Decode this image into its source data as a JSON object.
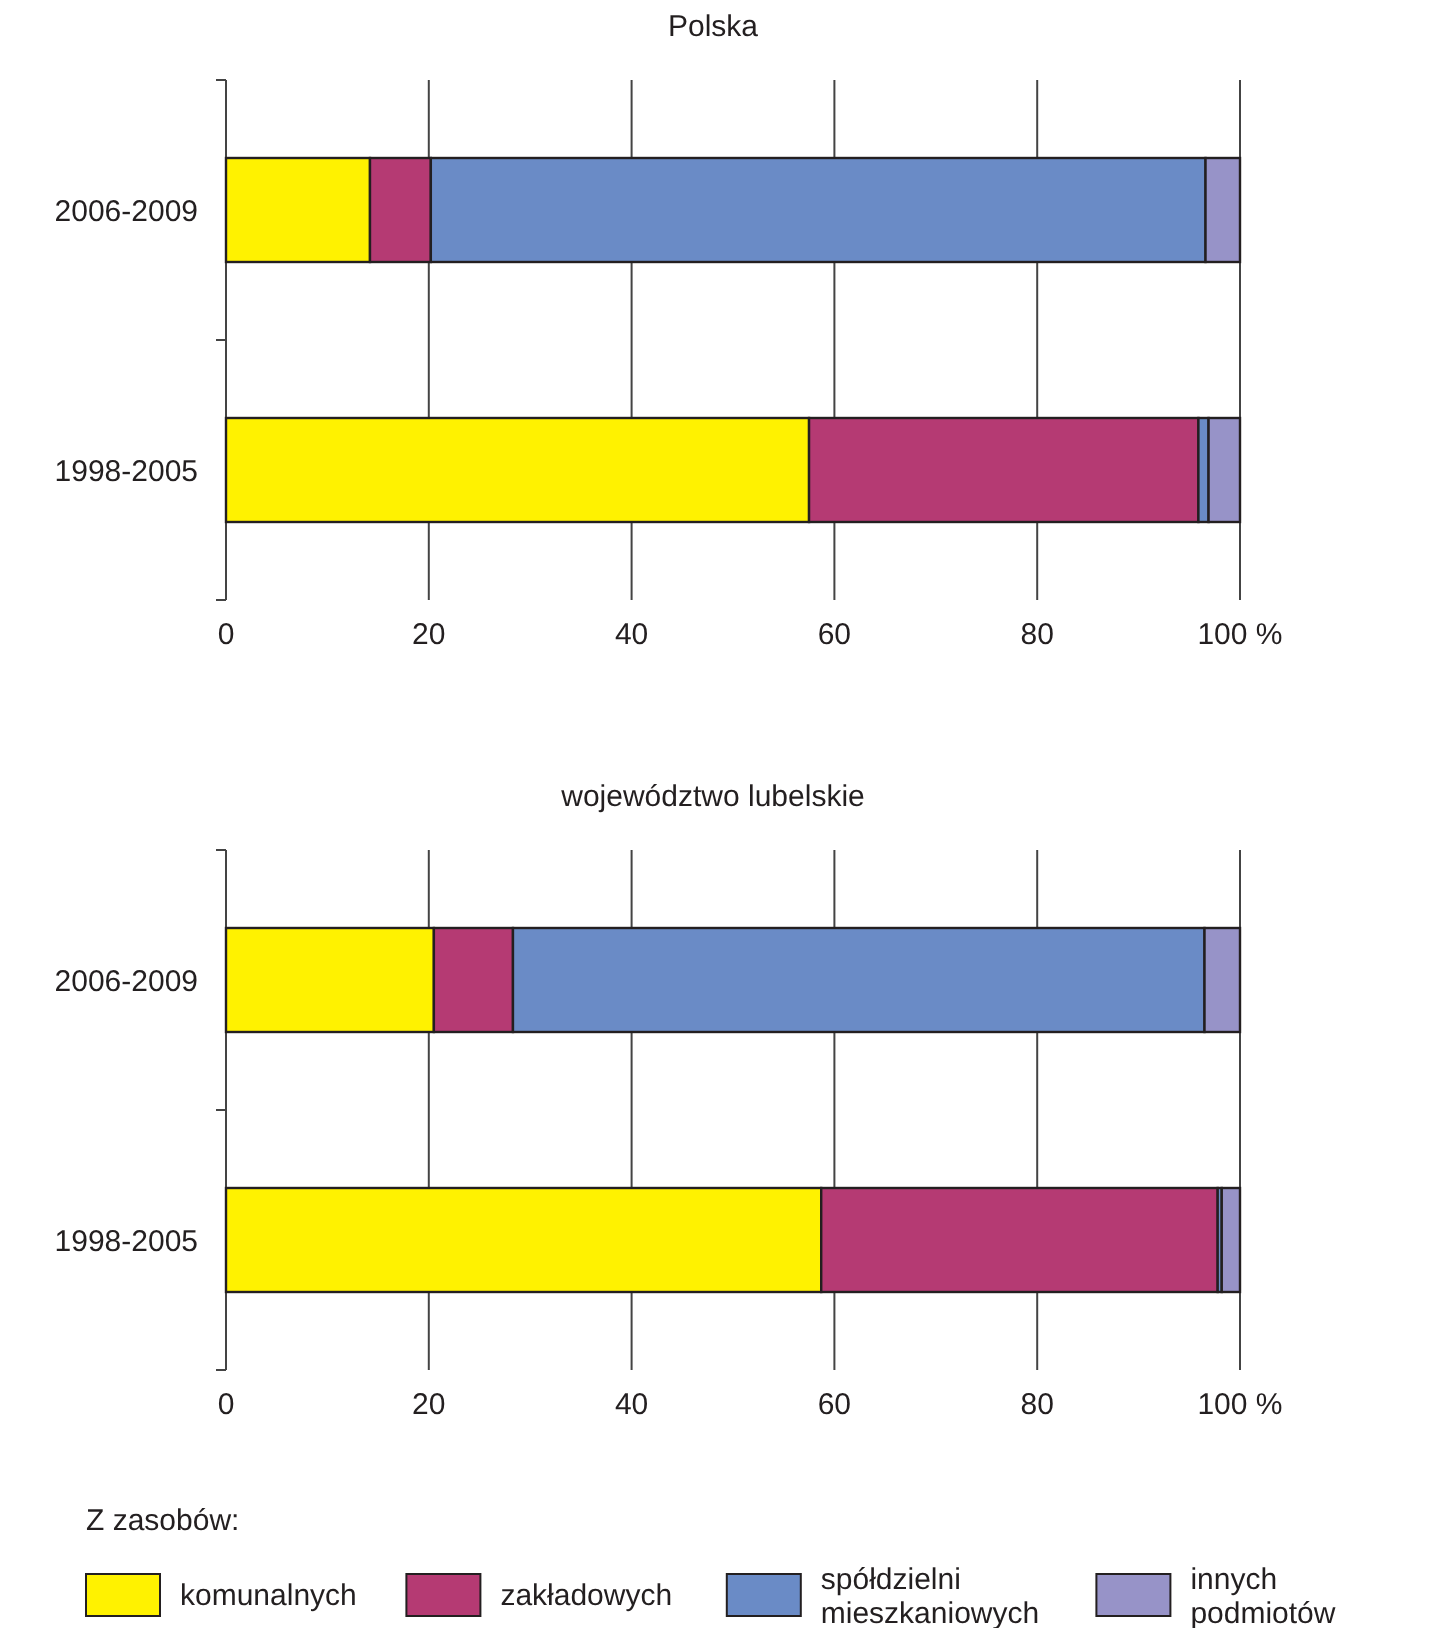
{
  "chart_data": [
    {
      "type": "bar",
      "title": "Polska",
      "orientation": "horizontal",
      "stacked": true,
      "categories": [
        "2006-2009",
        "1998-2005"
      ],
      "series": [
        {
          "color": "#fff200",
          "values": [
            14.2,
            57.5
          ]
        },
        {
          "color": "#b53a73",
          "values": [
            6.0,
            38.4
          ]
        },
        {
          "color": "#6a8bc6",
          "values": [
            76.4,
            1.0
          ]
        },
        {
          "color": "#9793c8",
          "values": [
            3.4,
            3.1
          ]
        }
      ],
      "xlim": [
        0,
        100
      ],
      "xticks": [
        0,
        20,
        40,
        60,
        80,
        {
          "value": 100,
          "label": "100 %"
        }
      ],
      "grid": "x",
      "legend": false
    },
    {
      "type": "bar",
      "title": "województwo lubelskie",
      "orientation": "horizontal",
      "stacked": true,
      "categories": [
        "2006-2009",
        "1998-2005"
      ],
      "series": [
        {
          "name": "komunalnych",
          "color": "#fff200",
          "values": [
            20.5,
            58.7
          ]
        },
        {
          "name": "zakładowych",
          "color": "#b53a73",
          "values": [
            7.8,
            39.1
          ]
        },
        {
          "name": "spółdzielni mieszkaniowych",
          "color": "#6a8bc6",
          "values": [
            68.2,
            0.4
          ]
        },
        {
          "name": "innych podmiotów",
          "color": "#9793c8",
          "values": [
            3.5,
            1.8
          ]
        }
      ],
      "xlim": [
        0,
        100
      ],
      "xticks": [
        0,
        20,
        40,
        60,
        80,
        {
          "value": 100,
          "label": "100 %"
        }
      ],
      "grid": "x",
      "legend": "bottom",
      "legend_title": "Z zasobów:"
    }
  ]
}
